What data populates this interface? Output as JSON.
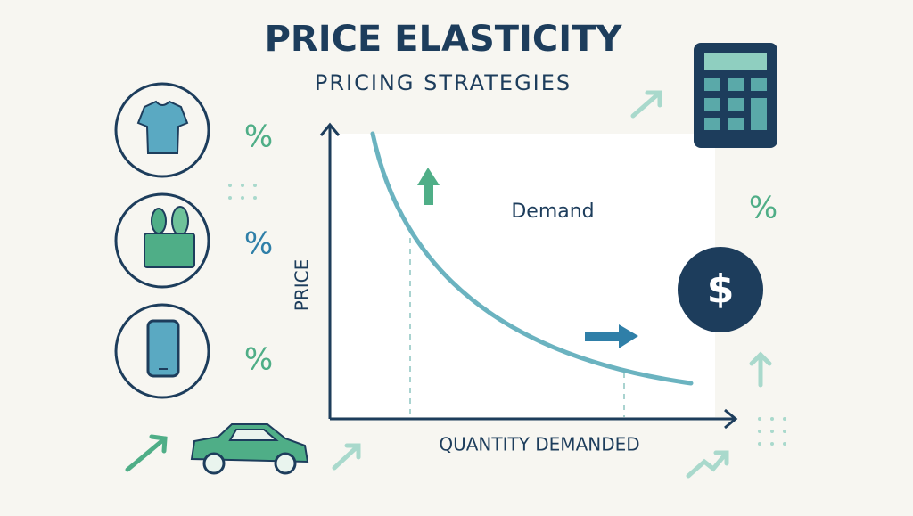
{
  "header": {
    "title": "PRICE ELASTICITY",
    "subtitle": "PRICING STRATEGIES"
  },
  "chart": {
    "y_axis_label": "PRICE",
    "x_axis_label": "QUANTITY DEMANDED",
    "curve_label": "Demand"
  },
  "percent_signs": [
    "%",
    "%",
    "%",
    "%"
  ],
  "coin": {
    "symbol": "$"
  }
}
